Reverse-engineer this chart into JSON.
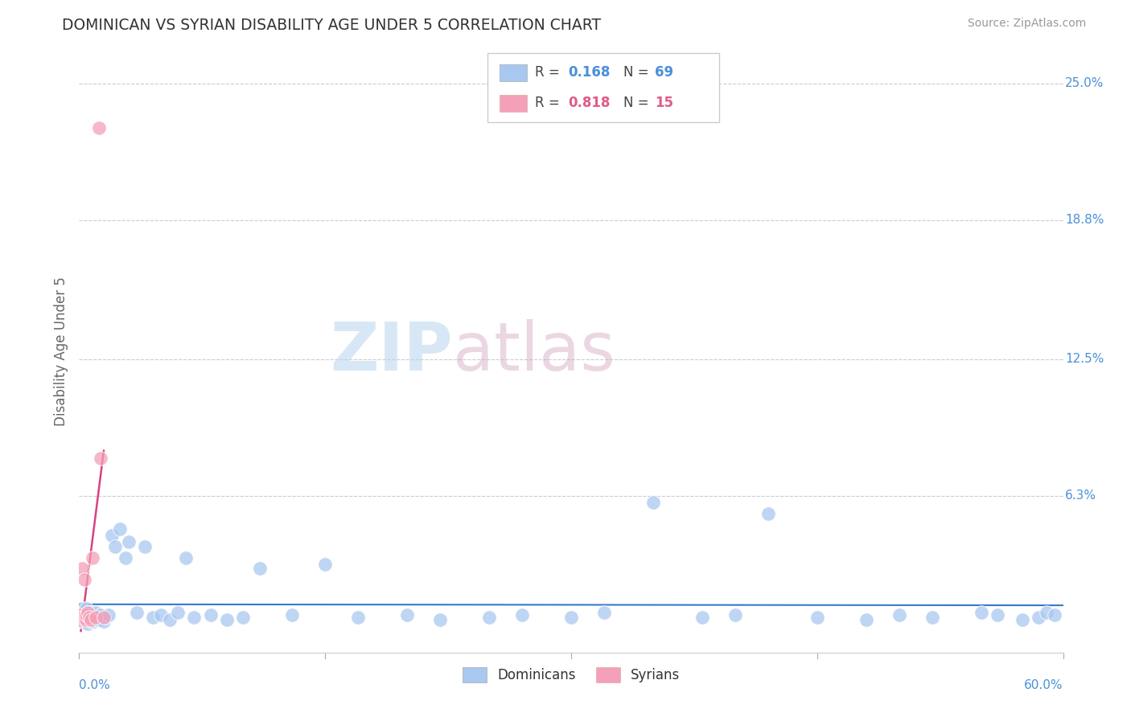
{
  "title": "DOMINICAN VS SYRIAN DISABILITY AGE UNDER 5 CORRELATION CHART",
  "source": "Source: ZipAtlas.com",
  "ylabel": "Disability Age Under 5",
  "xlim": [
    0.0,
    0.6
  ],
  "ylim": [
    -0.008,
    0.265
  ],
  "dominicans_R": 0.168,
  "dominicans_N": 69,
  "syrians_R": 0.818,
  "syrians_N": 15,
  "dominican_color": "#a8c8f0",
  "syrian_color": "#f4a0b8",
  "dominican_line_color": "#3a78c9",
  "syrian_line_color": "#d94080",
  "syrian_line_dashed_color": "#e8a0b8",
  "background_color": "#ffffff",
  "grid_color": "#cccccc",
  "ytick_positions": [
    0.0,
    0.063,
    0.125,
    0.188,
    0.25
  ],
  "ytick_labels": [
    "",
    "6.3%",
    "12.5%",
    "18.8%",
    "25.0%"
  ],
  "watermark_zip_color": "#b8d8f0",
  "watermark_atlas_color": "#d4a0c0",
  "dom_x": [
    0.001,
    0.001,
    0.002,
    0.002,
    0.002,
    0.003,
    0.003,
    0.003,
    0.004,
    0.004,
    0.004,
    0.005,
    0.005,
    0.005,
    0.006,
    0.006,
    0.007,
    0.007,
    0.008,
    0.008,
    0.009,
    0.01,
    0.01,
    0.011,
    0.012,
    0.013,
    0.015,
    0.016,
    0.018,
    0.02,
    0.022,
    0.025,
    0.028,
    0.03,
    0.035,
    0.04,
    0.045,
    0.05,
    0.055,
    0.06,
    0.065,
    0.07,
    0.08,
    0.09,
    0.1,
    0.11,
    0.13,
    0.15,
    0.17,
    0.2,
    0.22,
    0.25,
    0.27,
    0.3,
    0.32,
    0.35,
    0.38,
    0.4,
    0.42,
    0.45,
    0.48,
    0.5,
    0.52,
    0.55,
    0.56,
    0.575,
    0.585,
    0.59,
    0.595
  ],
  "dom_y": [
    0.008,
    0.01,
    0.006,
    0.009,
    0.012,
    0.007,
    0.008,
    0.011,
    0.006,
    0.009,
    0.012,
    0.005,
    0.008,
    0.01,
    0.007,
    0.009,
    0.006,
    0.01,
    0.007,
    0.009,
    0.006,
    0.007,
    0.01,
    0.008,
    0.007,
    0.009,
    0.006,
    0.008,
    0.009,
    0.045,
    0.04,
    0.048,
    0.035,
    0.042,
    0.01,
    0.04,
    0.008,
    0.009,
    0.007,
    0.01,
    0.035,
    0.008,
    0.009,
    0.007,
    0.008,
    0.03,
    0.009,
    0.032,
    0.008,
    0.009,
    0.007,
    0.008,
    0.009,
    0.008,
    0.01,
    0.06,
    0.008,
    0.009,
    0.055,
    0.008,
    0.007,
    0.009,
    0.008,
    0.01,
    0.009,
    0.007,
    0.008,
    0.01,
    0.009
  ],
  "syr_x": [
    0.001,
    0.001,
    0.002,
    0.002,
    0.003,
    0.004,
    0.004,
    0.005,
    0.006,
    0.007,
    0.008,
    0.01,
    0.012,
    0.013,
    0.015
  ],
  "syr_y": [
    0.007,
    0.009,
    0.008,
    0.03,
    0.025,
    0.007,
    0.009,
    0.01,
    0.008,
    0.007,
    0.035,
    0.008,
    0.23,
    0.08,
    0.008
  ]
}
